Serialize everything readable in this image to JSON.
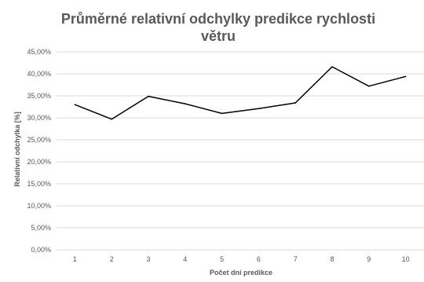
{
  "chart_data": {
    "type": "line",
    "title_lines": [
      "Průměrné relativní odchylky predikce rychlosti",
      "větru"
    ],
    "xlabel": "Počet dní predikce",
    "ylabel": "Relativní odchylka [%]",
    "categories": [
      "1",
      "2",
      "3",
      "4",
      "5",
      "6",
      "7",
      "8",
      "9",
      "10"
    ],
    "series": [
      {
        "values": [
          33.0,
          29.7,
          34.9,
          33.2,
          31.0,
          32.1,
          33.4,
          41.6,
          37.2,
          39.4
        ]
      }
    ],
    "ylim": [
      0,
      45
    ],
    "yticks": [
      "0,00%",
      "5,00%",
      "10,00%",
      "15,00%",
      "20,00%",
      "25,00%",
      "30,00%",
      "35,00%",
      "40,00%",
      "45,00%"
    ],
    "grid": true,
    "legend": "none",
    "line_color": "#000000",
    "grid_color": "#d9d9d9"
  }
}
